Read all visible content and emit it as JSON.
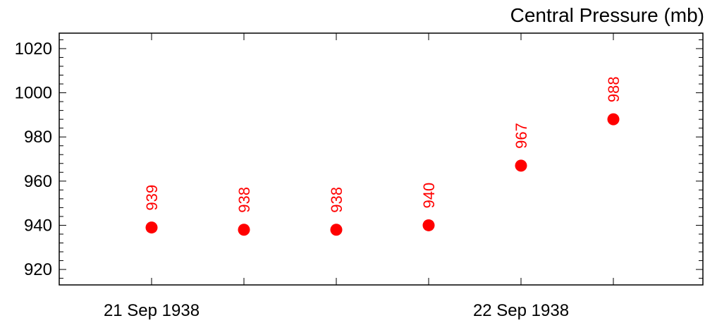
{
  "chart_data": {
    "type": "scatter",
    "title": "Central Pressure (mb)",
    "xlabel": "",
    "ylabel": "",
    "ylim": [
      913,
      1027
    ],
    "yticks": [
      920,
      940,
      960,
      980,
      1000,
      1020
    ],
    "x_date_labels": [
      "21 Sep 1938",
      "22 Sep 1938"
    ],
    "points": [
      {
        "t": "1938-09-21 00:00",
        "value": 939
      },
      {
        "t": "1938-09-21 06:00",
        "value": 938
      },
      {
        "t": "1938-09-21 12:00",
        "value": 938
      },
      {
        "t": "1938-09-21 18:00",
        "value": 940
      },
      {
        "t": "1938-09-22 00:00",
        "value": 967
      },
      {
        "t": "1938-09-22 06:00",
        "value": 988
      }
    ],
    "marker_color": "#ff0000",
    "label_color": "#ff0000",
    "grid": false
  }
}
